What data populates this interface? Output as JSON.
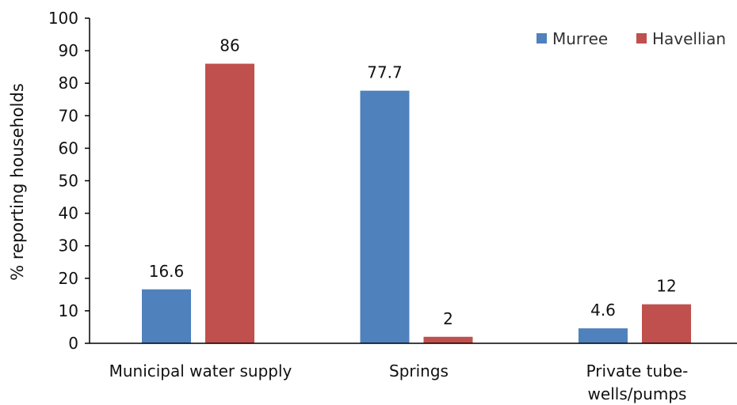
{
  "chart_data": {
    "type": "bar",
    "title": "",
    "xlabel": "",
    "ylabel": "% reporting households",
    "ylim": [
      0,
      100
    ],
    "yticks": [
      0,
      10,
      20,
      30,
      40,
      50,
      60,
      70,
      80,
      90,
      100
    ],
    "grid": false,
    "legend_position": "top-right",
    "categories": [
      [
        "Municipal water supply"
      ],
      [
        "Springs"
      ],
      [
        "Private tube-",
        "wells/pumps"
      ]
    ],
    "series": [
      {
        "name": "Murree",
        "color": "#4f81bd",
        "values": [
          16.6,
          77.7,
          4.6
        ],
        "labels": [
          "16.6",
          "77.7",
          "4.6"
        ]
      },
      {
        "name": "Havellian",
        "color": "#c0504d",
        "values": [
          86,
          2,
          12
        ],
        "labels": [
          "86",
          "2",
          "12"
        ]
      }
    ]
  }
}
